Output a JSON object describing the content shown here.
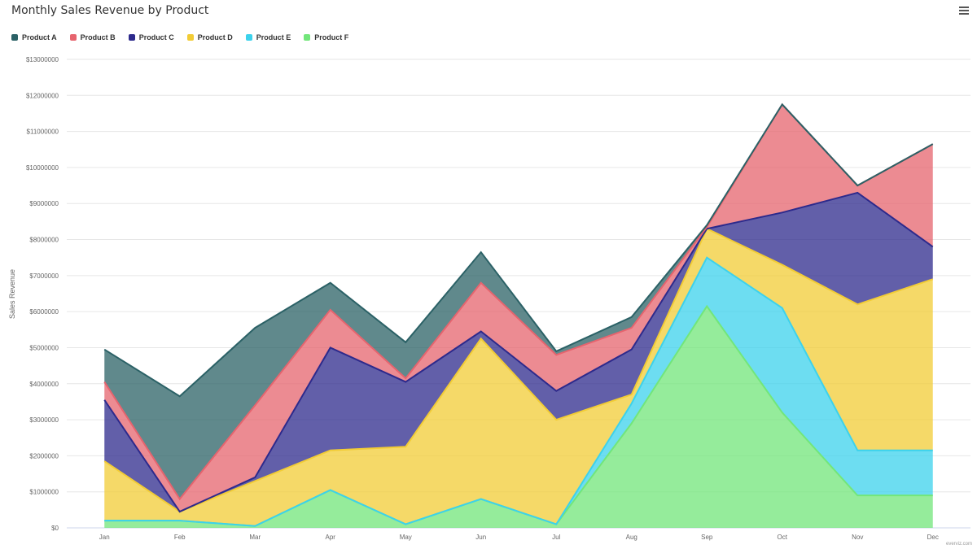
{
  "page": {
    "credit": "everviz.com"
  },
  "chart_data": {
    "type": "area",
    "stacked": true,
    "title": "Monthly Sales Revenue by Product",
    "ylabel": "Sales Revenue",
    "xlabel": "",
    "categories": [
      "Jan",
      "Feb",
      "Mar",
      "Apr",
      "May",
      "Jun",
      "Jul",
      "Aug",
      "Sep",
      "Oct",
      "Nov",
      "Dec"
    ],
    "ylim": [
      0,
      13000000
    ],
    "yticks": [
      0,
      1000000,
      2000000,
      3000000,
      4000000,
      5000000,
      6000000,
      7000000,
      8000000,
      9000000,
      10000000,
      11000000,
      12000000,
      13000000
    ],
    "ytick_labels": [
      "$0",
      "$1000000",
      "$2000000",
      "$3000000",
      "$4000000",
      "$5000000",
      "$6000000",
      "$7000000",
      "$8000000",
      "$9000000",
      "$10000000",
      "$11000000",
      "$12000000",
      "$13000000"
    ],
    "grid": true,
    "legend_position": "top-left",
    "series": [
      {
        "name": "Product A",
        "color": "#2b6166",
        "values": [
          900000,
          2850000,
          2150000,
          750000,
          1000000,
          850000,
          100000,
          300000,
          50000,
          0,
          0,
          0
        ]
      },
      {
        "name": "Product B",
        "color": "#e6646e",
        "values": [
          500000,
          350000,
          2000000,
          1050000,
          100000,
          1350000,
          1000000,
          600000,
          50000,
          3000000,
          200000,
          2850000
        ]
      },
      {
        "name": "Product C",
        "color": "#2d2a8c",
        "values": [
          1700000,
          0,
          100000,
          2850000,
          1800000,
          200000,
          800000,
          1250000,
          0,
          1450000,
          3100000,
          900000
        ]
      },
      {
        "name": "Product D",
        "color": "#f2cc35",
        "values": [
          1650000,
          250000,
          1250000,
          1100000,
          2150000,
          4450000,
          2900000,
          250000,
          800000,
          1200000,
          4050000,
          4750000
        ]
      },
      {
        "name": "Product E",
        "color": "#3cd2ec",
        "values": [
          0,
          0,
          0,
          0,
          0,
          0,
          0,
          550000,
          1350000,
          2900000,
          1250000,
          1250000
        ]
      },
      {
        "name": "Product F",
        "color": "#72e67a",
        "values": [
          200000,
          200000,
          50000,
          1050000,
          100000,
          800000,
          100000,
          2900000,
          6150000,
          3200000,
          900000,
          900000
        ]
      }
    ]
  }
}
